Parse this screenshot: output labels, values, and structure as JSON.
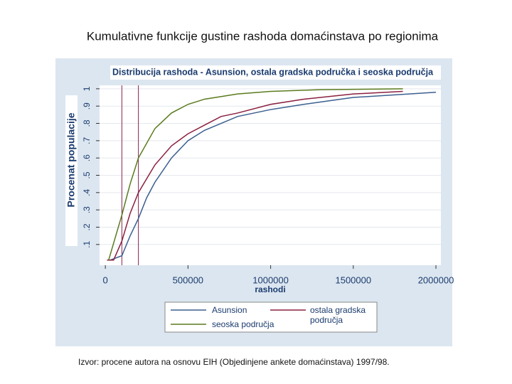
{
  "slide_title": "Kumulativne funkcije gustine rashoda domaćinstava po regionima",
  "source": "Izvor: procene autora na osnovu EIH (Objedinjene ankete domaćinstava) 1997/98.",
  "chart_data": {
    "type": "line",
    "title": "Distribucija rashoda - Asunsion, ostala gradska područka i seoska područja",
    "x_label": "rashodi",
    "y_label": "Procenat  populacije",
    "xlim": [
      -35000,
      2030000
    ],
    "xticks": [
      0,
      500000,
      1000000,
      1500000,
      2000000
    ],
    "ylim": [
      -0.02,
      1.02
    ],
    "yticks": [
      {
        "value": 0.1,
        "label": ".1"
      },
      {
        "value": 0.2,
        "label": ".2"
      },
      {
        "value": 0.3,
        "label": ".3"
      },
      {
        "value": 0.4,
        "label": ".4"
      },
      {
        "value": 0.5,
        "label": ".5"
      },
      {
        "value": 0.6,
        "label": ".6"
      },
      {
        "value": 0.7,
        "label": ".7"
      },
      {
        "value": 0.8,
        "label": ".8"
      },
      {
        "value": 0.9,
        "label": ".9"
      },
      1
    ],
    "grid": true,
    "vlines": [
      100000,
      200000
    ],
    "vline_color": "#8b2252",
    "series": [
      {
        "name": "Asunsion",
        "color": "#3b5f8f",
        "x": [
          30000,
          100000,
          150000,
          200000,
          250000,
          300000,
          400000,
          500000,
          600000,
          700000,
          800000,
          1000000,
          1200000,
          1500000,
          2000000
        ],
        "values": [
          0.01,
          0.035,
          0.15,
          0.25,
          0.37,
          0.46,
          0.6,
          0.7,
          0.76,
          0.8,
          0.84,
          0.88,
          0.91,
          0.95,
          0.98
        ]
      },
      {
        "name": "ostala gradska područja",
        "color": "#8b2040",
        "x": [
          10000,
          50000,
          100000,
          150000,
          200000,
          300000,
          400000,
          500000,
          600000,
          700000,
          800000,
          1000000,
          1200000,
          1500000,
          1800000
        ],
        "values": [
          0.01,
          0.01,
          0.12,
          0.28,
          0.4,
          0.56,
          0.67,
          0.74,
          0.79,
          0.84,
          0.86,
          0.91,
          0.94,
          0.97,
          0.985
        ]
      },
      {
        "name": "seoska područja",
        "color": "#5a7a1e",
        "x": [
          20000,
          100000,
          150000,
          200000,
          300000,
          400000,
          500000,
          600000,
          800000,
          1000000,
          1300000,
          1800000
        ],
        "values": [
          0.01,
          0.27,
          0.45,
          0.6,
          0.77,
          0.86,
          0.91,
          0.94,
          0.97,
          0.985,
          0.995,
          1
        ]
      }
    ]
  }
}
